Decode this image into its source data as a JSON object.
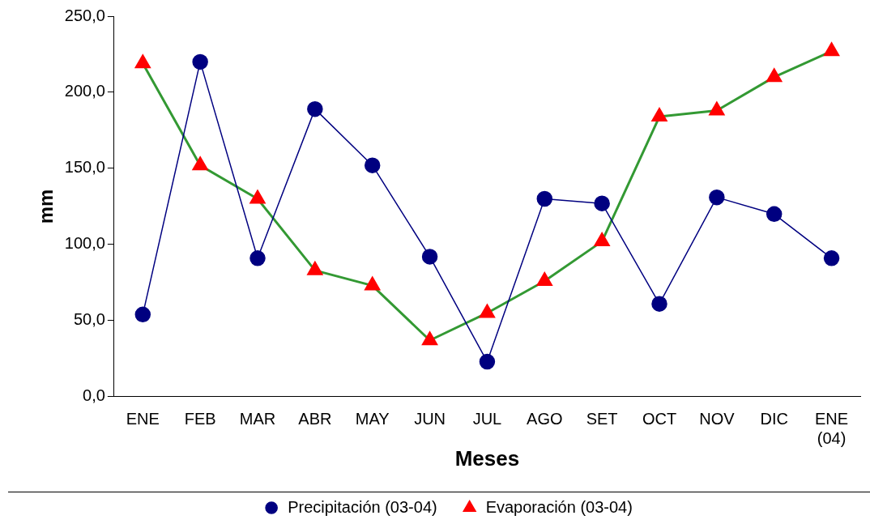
{
  "chart_data": {
    "type": "line",
    "xlabel": "Meses",
    "ylabel": "mm",
    "categories": [
      "ENE",
      "FEB",
      "MAR",
      "ABR",
      "MAY",
      "JUN",
      "JUL",
      "AGO",
      "SET",
      "OCT",
      "NOV",
      "DIC",
      "ENE\n(04)"
    ],
    "series": [
      {
        "name": "Precipitación (03-04)",
        "color": "#000080",
        "marker": "circle",
        "values": [
          54,
          220,
          91,
          189,
          152,
          92,
          23,
          130,
          127,
          61,
          131,
          120,
          91
        ]
      },
      {
        "name": "Evaporación (03-04)",
        "color": "#339933",
        "colors": [
          "#ff0000",
          "#ff0000",
          "#ff0000",
          "#ff0000",
          "#ff0000",
          "#ff0000",
          "#ff0000",
          "#ff0000",
          "#ff0000",
          "#ff0000",
          "#ff0000",
          "#ff0000",
          "#ff0000"
        ],
        "marker": "triangle",
        "values": [
          219,
          152,
          130,
          83,
          73,
          37,
          55,
          76,
          102,
          184,
          188,
          210,
          227
        ]
      }
    ],
    "ylim": [
      0,
      250
    ],
    "yticks": [
      {
        "value": 0,
        "label": "0,0"
      },
      {
        "value": 50,
        "label": "50,0"
      },
      {
        "value": 100,
        "label": "100,0"
      },
      {
        "value": 150,
        "label": "150,0"
      },
      {
        "value": 200,
        "label": "200,0"
      },
      {
        "value": 250,
        "label": "250,0"
      }
    ],
    "grid": false,
    "legend": "bottom",
    "line_style": "solid"
  }
}
